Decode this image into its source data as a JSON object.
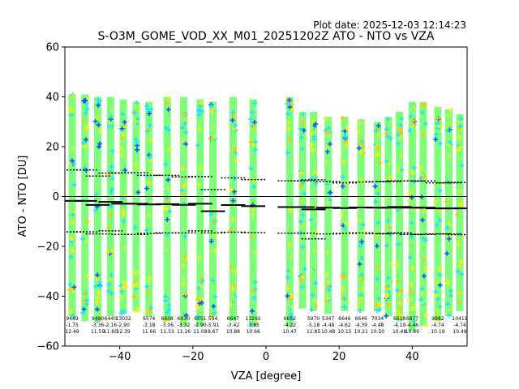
{
  "plot_date": "Plot date: 2025-12-03 12:14:23",
  "chart_data": {
    "type": "scatter",
    "title": "S-O3M_GOME_VOD_XX_M01_20251202Z ATO - NTO vs VZA",
    "xlabel": "VZA [degree]",
    "ylabel": "ATO - NTO [DU]",
    "xlim": [
      -55,
      55
    ],
    "ylim": [
      -60,
      60
    ],
    "xticks": [
      -40,
      -20,
      0,
      20,
      40
    ],
    "yticks": [
      -60,
      -40,
      -20,
      0,
      20,
      40,
      60
    ],
    "xtick_labels": [
      "−40",
      "−20",
      "0",
      "20",
      "40"
    ],
    "ytick_labels": [
      "−60",
      "−40",
      "−20",
      "0",
      "20",
      "40",
      "60"
    ],
    "zero_line": 0,
    "colors": {
      "fill": "#7dff7a",
      "cyan": "#1ae6ff",
      "yellow": "#ffee00",
      "gold": "#ffc400",
      "blue": "#005dff",
      "lime": "#c4ff3a",
      "mean": "#000000",
      "std": "#000000"
    },
    "bins_left": [
      {
        "vza": -53,
        "lo": -48,
        "hi": 41,
        "mean": -1.75,
        "std_hi": 10.7,
        "std_lo": -14.2,
        "count": "9449",
        "mean_label": "-1.75",
        "std_label": "12.49"
      },
      {
        "vza": -49.5,
        "lo": -50,
        "hi": 41,
        "mean": -1.75,
        "std_hi": 10.7,
        "std_lo": -14.2,
        "count": "",
        "mean_label": "",
        "std_label": ""
      },
      {
        "vza": -46,
        "lo": -50,
        "hi": 40,
        "mean": -3.36,
        "std_hi": 8.2,
        "std_lo": -15.0,
        "count": "9490",
        "mean_label": "-3.36",
        "std_label": "11.59"
      },
      {
        "vza": -42.5,
        "lo": -48,
        "hi": 40,
        "mean": -2.16,
        "std_hi": 9.4,
        "std_lo": -13.8,
        "count": "6440",
        "mean_label": "-2.16",
        "std_label": "11.60"
      },
      {
        "vza": -39,
        "lo": -47,
        "hi": 39,
        "mean": -2.9,
        "std_hi": 9.5,
        "std_lo": -15.2,
        "count": "13032",
        "mean_label": "-2.90",
        "std_label": "12.39"
      },
      {
        "vza": -35.5,
        "lo": -46,
        "hi": 38,
        "mean": -2.9,
        "std_hi": 9.5,
        "std_lo": -15.2,
        "count": "",
        "mean_label": "",
        "std_label": ""
      },
      {
        "vza": -32,
        "lo": -48,
        "hi": 38,
        "mean": -3.18,
        "std_hi": 8.5,
        "std_lo": -14.8,
        "count": "6574",
        "mean_label": "-3.18",
        "std_label": "11.66"
      },
      {
        "vza": -27,
        "lo": -50,
        "hi": 40,
        "mean": -3.06,
        "std_hi": 8.5,
        "std_lo": -14.6,
        "count": "6608",
        "mean_label": "-3.06",
        "std_label": "11.53"
      },
      {
        "vza": -22.5,
        "lo": -52,
        "hi": 40,
        "mean": -3.32,
        "std_hi": 7.9,
        "std_lo": -14.6,
        "count": "6630",
        "mean_label": "-3.32",
        "std_label": "11.26"
      },
      {
        "vza": -18,
        "lo": -52,
        "hi": 39,
        "mean": -2.9,
        "std_hi": 8.0,
        "std_lo": -13.8,
        "count": "6051",
        "mean_label": "-2.90",
        "std_label": "11.08"
      },
      {
        "vza": -14.5,
        "lo": -48,
        "hi": 38,
        "mean": -5.91,
        "std_hi": 2.8,
        "std_lo": -14.6,
        "count": "594",
        "mean_label": "-5.91",
        "std_label": "8.67"
      },
      {
        "vza": -9,
        "lo": -50,
        "hi": 40,
        "mean": -3.42,
        "std_hi": 7.5,
        "std_lo": -14.3,
        "count": "6647",
        "mean_label": "-3.42",
        "std_label": "10.88"
      },
      {
        "vza": -3.5,
        "lo": -52,
        "hi": 39,
        "mean": -3.85,
        "std_hi": 6.8,
        "std_lo": -14.5,
        "count": "13292",
        "mean_label": "-3.85",
        "std_label": "10.66"
      }
    ],
    "bins_right": [
      {
        "vza": 6.5,
        "lo": -52,
        "hi": 40,
        "mean": -4.22,
        "std_hi": 6.3,
        "std_lo": -14.7,
        "count": "6652",
        "mean_label": "-4.22",
        "std_label": "10.47"
      },
      {
        "vza": 10,
        "lo": -45,
        "hi": 34,
        "mean": -4.22,
        "std_hi": 6.3,
        "std_lo": -14.7,
        "count": "",
        "mean_label": "",
        "std_label": ""
      },
      {
        "vza": 13,
        "lo": -46,
        "hi": 34,
        "mean": -5.18,
        "std_hi": 6.7,
        "std_lo": -17.0,
        "count": "5970",
        "mean_label": "-5.18",
        "std_label": "11.85"
      },
      {
        "vza": 17,
        "lo": -47,
        "hi": 32,
        "mean": -4.48,
        "std_hi": 6.0,
        "std_lo": -15.0,
        "count": "5347",
        "mean_label": "-4.48",
        "std_label": "10.48"
      },
      {
        "vza": 21.5,
        "lo": -46,
        "hi": 32,
        "mean": -4.62,
        "std_hi": 5.5,
        "std_lo": -14.8,
        "count": "6646",
        "mean_label": "-4.62",
        "std_label": "10.15"
      },
      {
        "vza": 26,
        "lo": -46,
        "hi": 31,
        "mean": -4.39,
        "std_hi": 5.8,
        "std_lo": -14.6,
        "count": "6646",
        "mean_label": "-4.39",
        "std_label": "10.21"
      },
      {
        "vza": 30.5,
        "lo": -46,
        "hi": 30,
        "mean": -4.48,
        "std_hi": 6.0,
        "std_lo": -14.9,
        "count": "7034",
        "mean_label": "-4.48",
        "std_label": "10.50"
      },
      {
        "vza": 33.5,
        "lo": -48,
        "hi": 32,
        "mean": -4.48,
        "std_hi": 6.0,
        "std_lo": -14.9,
        "count": "",
        "mean_label": "",
        "std_label": ""
      },
      {
        "vza": 36.5,
        "lo": -50,
        "hi": 34,
        "mean": -4.19,
        "std_hi": 6.3,
        "std_lo": -14.6,
        "count": "6618",
        "mean_label": "-4.19",
        "std_label": "10.48"
      },
      {
        "vza": 40,
        "lo": -54,
        "hi": 38,
        "mean": -4.46,
        "std_hi": 6.2,
        "std_lo": -15.2,
        "count": "6877",
        "mean_label": "-4.46",
        "std_label": "10.69"
      },
      {
        "vza": 43,
        "lo": -52,
        "hi": 38,
        "mean": -4.46,
        "std_hi": 6.2,
        "std_lo": -15.2,
        "count": "",
        "mean_label": "",
        "std_label": ""
      },
      {
        "vza": 47,
        "lo": -50,
        "hi": 36,
        "mean": -4.74,
        "std_hi": 5.5,
        "std_lo": -15.0,
        "count": "9882",
        "mean_label": "-4.74",
        "std_label": "10.19"
      },
      {
        "vza": 50,
        "lo": -48,
        "hi": 35,
        "mean": -4.74,
        "std_hi": 5.5,
        "std_lo": -15.0,
        "count": "",
        "mean_label": "",
        "std_label": ""
      },
      {
        "vza": 53,
        "lo": -46,
        "hi": 33,
        "mean": -4.74,
        "std_hi": 5.7,
        "std_lo": -15.3,
        "count": "10411",
        "mean_label": "-4.74",
        "std_label": "10.49"
      }
    ]
  }
}
